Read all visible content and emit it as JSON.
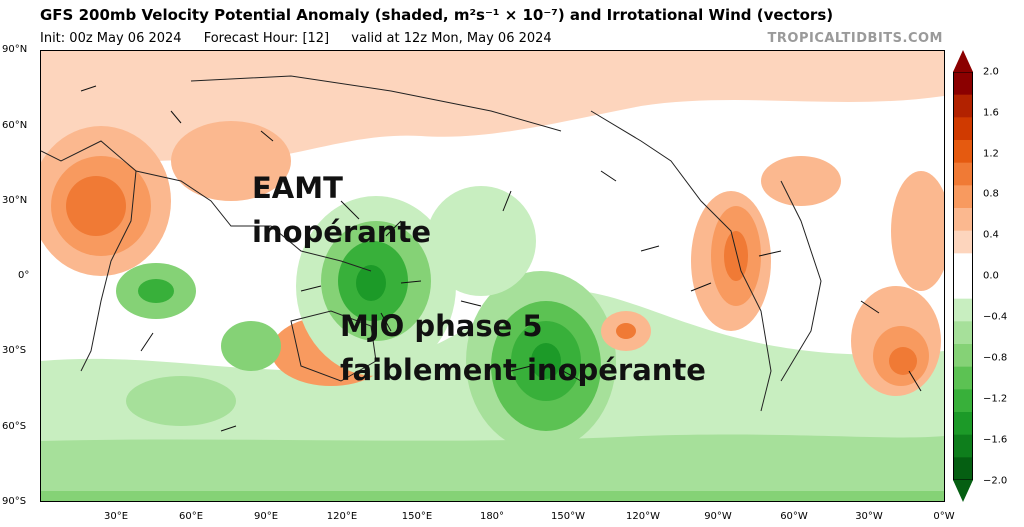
{
  "header": {
    "title": "GFS 200mb Velocity Potential Anomaly (shaded, m²s⁻¹ × 10⁻⁷) and Irrotational Wind (vectors)",
    "init": "Init: 00z May 06 2024",
    "forecast_hour": "Forecast Hour: [12]",
    "valid": "valid at 12z Mon, May 06 2024",
    "brand": "TROPICALTIDBITS.COM"
  },
  "axes": {
    "lat_labels": [
      "90°N",
      "60°N",
      "30°N",
      "0°",
      "30°S",
      "60°S",
      "90°S"
    ],
    "lon_labels": [
      "30°E",
      "60°E",
      "90°E",
      "120°E",
      "150°E",
      "180°",
      "150°W",
      "120°W",
      "90°W",
      "60°W",
      "30°W",
      "0°W"
    ]
  },
  "colorbar": {
    "labels": [
      "2.0",
      "1.6",
      "1.2",
      "0.8",
      "0.4",
      "0.0",
      "−0.4",
      "−0.8",
      "−1.2",
      "−1.6",
      "−2.0"
    ],
    "colors": [
      "#8b0000",
      "#b22200",
      "#d03a00",
      "#e55a10",
      "#f07a35",
      "#f89a5f",
      "#fbb88f",
      "#fdd5bd",
      "#ffffff",
      "#ffffff",
      "#c8eec0",
      "#a6e09a",
      "#85d276",
      "#5cc253",
      "#38b03a",
      "#1c9a28",
      "#0e7e1c",
      "#055f12"
    ]
  },
  "annotations": {
    "eamt_line1": "EAMT",
    "eamt_line2": "inopérante",
    "mjo_line1": "MJO phase 5",
    "mjo_line2": "faiblement inopérante"
  },
  "map_data": {
    "projection": "equirectangular",
    "extent": {
      "lon": [
        0,
        360
      ],
      "lat": [
        -90,
        90
      ]
    },
    "anomaly_centers": [
      {
        "lon": 30,
        "lat": 30,
        "value": 1.2
      },
      {
        "lon": 133,
        "lat": -2,
        "value": -1.6
      },
      {
        "lon": 178,
        "lat": -30,
        "value": -1.6
      },
      {
        "lon": 265,
        "lat": 5,
        "value": 1.2
      },
      {
        "lon": 345,
        "lat": -35,
        "value": 1.2
      },
      {
        "lon": 45,
        "lat": -5,
        "value": -0.8
      },
      {
        "lon": 82,
        "lat": -30,
        "value": -0.8
      }
    ]
  }
}
